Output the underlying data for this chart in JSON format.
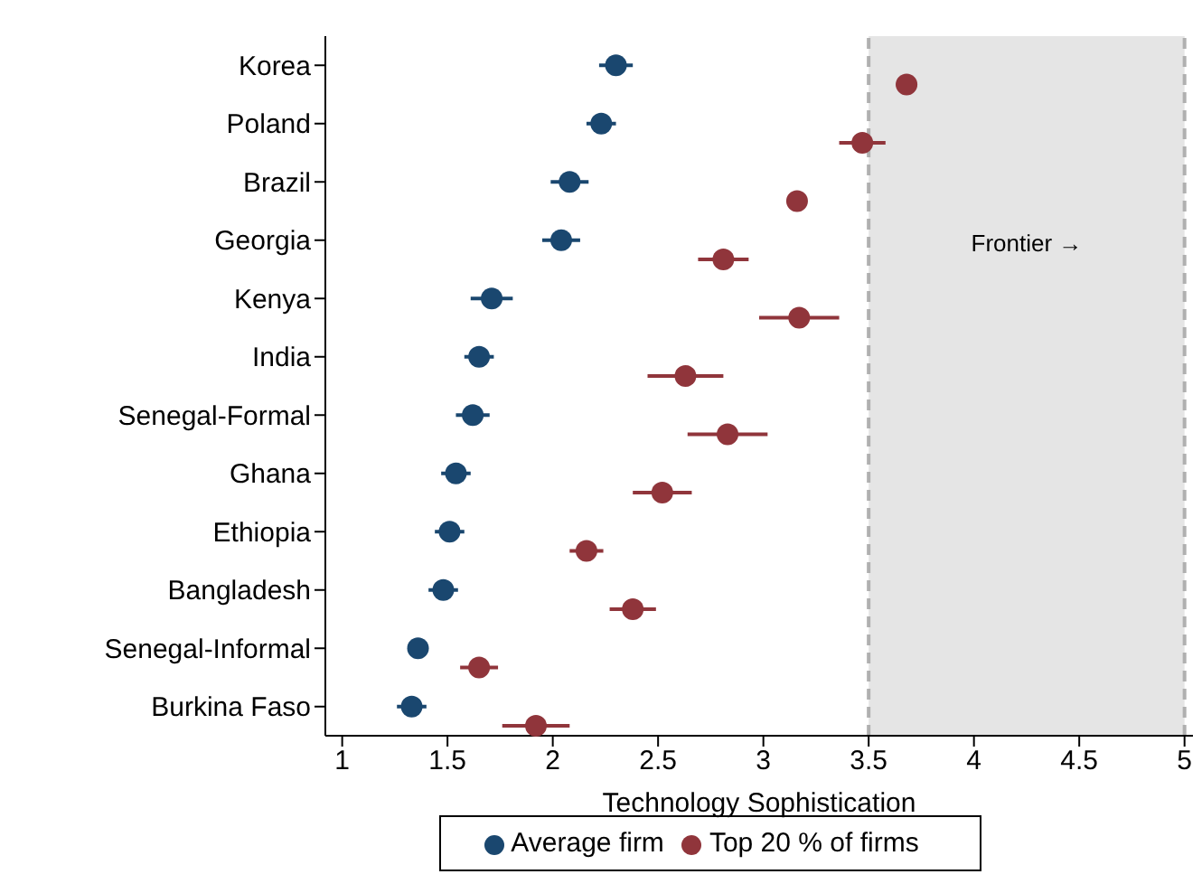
{
  "chart_data": {
    "type": "scatter",
    "xlabel": "Technology Sophistication",
    "categories": [
      "Korea",
      "Poland",
      "Brazil",
      "Georgia",
      "Kenya",
      "India",
      "Senegal-Formal",
      "Ghana",
      "Ethiopia",
      "Bangladesh",
      "Senegal-Informal",
      "Burkina Faso"
    ],
    "series": [
      {
        "name": "Average firm",
        "color": "#1a476f",
        "values": [
          2.3,
          2.23,
          2.08,
          2.04,
          1.71,
          1.65,
          1.62,
          1.54,
          1.51,
          1.48,
          1.36,
          1.33
        ],
        "errors": [
          0.08,
          0.07,
          0.09,
          0.09,
          0.1,
          0.07,
          0.08,
          0.07,
          0.07,
          0.07,
          null,
          0.07
        ]
      },
      {
        "name": "Top 20 % of firms",
        "color": "#90353b",
        "values": [
          3.68,
          3.47,
          3.16,
          2.81,
          3.17,
          2.63,
          2.83,
          2.52,
          2.16,
          2.38,
          1.65,
          1.92
        ],
        "errors": [
          0.05,
          0.11,
          0.03,
          0.12,
          0.19,
          0.18,
          0.19,
          0.14,
          0.08,
          0.11,
          0.09,
          0.16
        ]
      }
    ],
    "orientation": "horizontal",
    "xlim": [
      0.92,
      5.04
    ],
    "xticks": [
      1,
      1.5,
      2,
      2.5,
      3,
      3.5,
      4,
      4.5,
      5
    ],
    "bands": [
      {
        "axis": "x",
        "from": 3.5,
        "to": 5,
        "label": "Frontier →",
        "color": "#e5e5e5"
      }
    ],
    "ref_lines": [
      {
        "axis": "x",
        "value": 3.5,
        "label": null,
        "color": "#b0b0b0",
        "line_style": "dashed"
      },
      {
        "axis": "x",
        "value": 5,
        "label": null,
        "color": "#b0b0b0",
        "line_style": "dashed"
      }
    ],
    "legend": "bottom",
    "marker": "circle"
  }
}
